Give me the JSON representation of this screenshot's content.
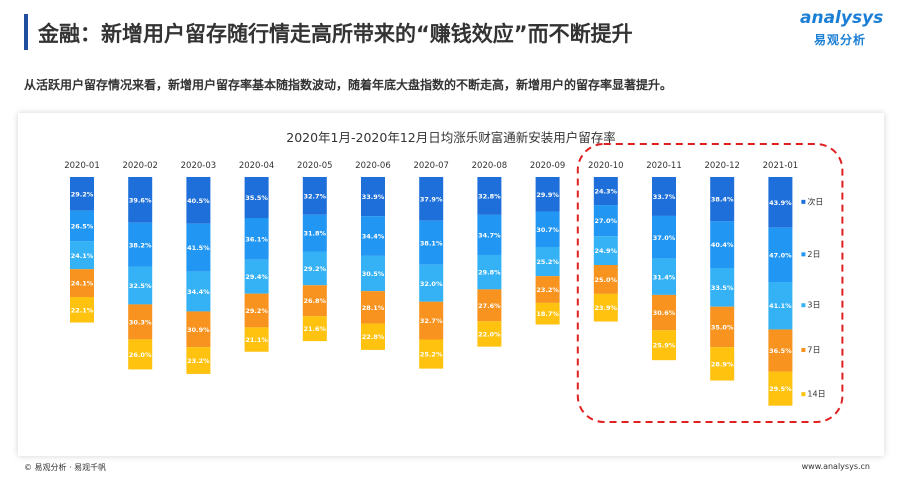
{
  "header": {
    "title": "金融：新增用户留存随行情走高所带来的“赚钱效应”而不断提升",
    "subtitle": "从活跃用户留存情况来看，新增用户留存率基本随指数波动，随着年底大盘指数的不断走高，新增用户的留存率显著提升。"
  },
  "logo": {
    "main": "analysys",
    "sub": "易观分析"
  },
  "footer": {
    "left": "© 易观分析 · 易观千帆",
    "right": "www.analysys.cn"
  },
  "colors": {
    "title_bar": "#1f4e9c",
    "highlight_box": "#e02020",
    "series": [
      "#1e6fd9",
      "#2196f3",
      "#35b2f5",
      "#f7931e",
      "#ffc20e"
    ]
  },
  "chart_data": {
    "type": "bar",
    "stacked": true,
    "title": "2020年1月-2020年12月日均涨乐财富通新安装用户留存率",
    "categories": [
      "2020-01",
      "2020-02",
      "2020-03",
      "2020-04",
      "2020-05",
      "2020-06",
      "2020-07",
      "2020-08",
      "2020-09",
      "2020-10",
      "2020-11",
      "2020-12",
      "2021-01"
    ],
    "series": [
      {
        "name": "次日",
        "values": [
          29.2,
          39.6,
          40.5,
          35.5,
          32.7,
          33.9,
          37.9,
          32.8,
          29.9,
          24.3,
          33.7,
          38.4,
          43.9
        ]
      },
      {
        "name": "2日",
        "values": [
          26.5,
          38.2,
          41.5,
          36.1,
          31.8,
          34.4,
          38.1,
          34.7,
          30.7,
          27.0,
          37.0,
          40.4,
          47.0
        ]
      },
      {
        "name": "3日",
        "values": [
          24.1,
          32.5,
          34.4,
          29.4,
          29.2,
          30.5,
          32.0,
          29.8,
          25.2,
          24.9,
          31.4,
          33.5,
          41.1
        ]
      },
      {
        "name": "7日",
        "values": [
          24.1,
          30.3,
          30.9,
          29.2,
          26.8,
          28.1,
          32.7,
          27.6,
          23.2,
          25.0,
          30.6,
          35.0,
          36.5
        ]
      },
      {
        "name": "14日",
        "values": [
          22.1,
          26.0,
          23.2,
          21.1,
          21.6,
          22.8,
          25.2,
          22.0,
          18.7,
          23.9,
          25.9,
          28.9,
          29.5
        ]
      }
    ],
    "legend_position": "right",
    "grid": false,
    "highlight_categories": [
      "2020-10",
      "2020-11",
      "2020-12",
      "2021-01"
    ]
  }
}
